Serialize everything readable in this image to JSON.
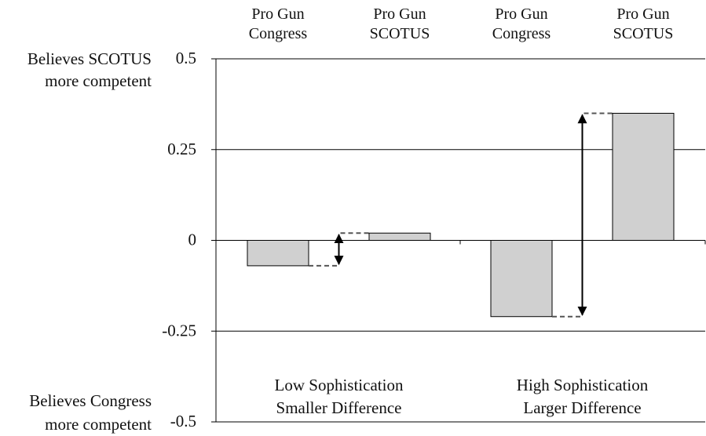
{
  "chart_data": {
    "type": "bar",
    "categories": [
      "Pro Gun Congress",
      "Pro Gun SCOTUS",
      "Pro Gun Congress",
      "Pro Gun SCOTUS"
    ],
    "category_lines": [
      [
        "Pro Gun",
        "Congress"
      ],
      [
        "Pro Gun",
        "SCOTUS"
      ],
      [
        "Pro Gun",
        "Congress"
      ],
      [
        "Pro Gun",
        "SCOTUS"
      ]
    ],
    "values": [
      -0.07,
      0.02,
      -0.21,
      0.35
    ],
    "ylim": [
      -0.5,
      0.5
    ],
    "yticks": [
      0.5,
      0.25,
      0,
      -0.25,
      -0.5
    ],
    "ytick_labels": [
      "0.5",
      "0.25",
      "0",
      "-0.25",
      "-0.5"
    ],
    "y_annotations": {
      "top": [
        "Believes SCOTUS",
        "more competent"
      ],
      "bottom": [
        "Believes Congress",
        "more competent"
      ]
    },
    "groups": [
      {
        "lines": [
          "Low Sophistication",
          "Smaller Difference"
        ],
        "pair": [
          0,
          1
        ]
      },
      {
        "lines": [
          "High Sophistication",
          "Larger Difference"
        ],
        "pair": [
          2,
          3
        ]
      }
    ],
    "grid": true,
    "colors": {
      "bar_fill": "#d0d0d0",
      "bar_stroke": "#000000",
      "grid": "#000000",
      "dashed": "#555555",
      "arrow": "#000000"
    }
  }
}
